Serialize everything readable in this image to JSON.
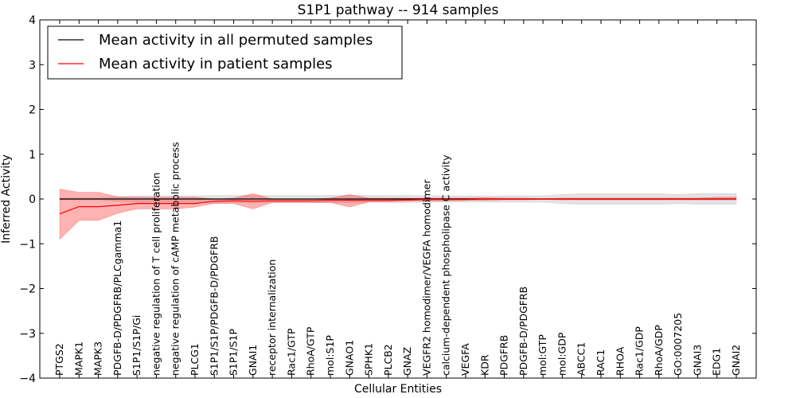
{
  "chart_data": {
    "type": "line",
    "title": "S1P1 pathway -- 914 samples",
    "xlabel": "Cellular Entities",
    "ylabel": "Inferred Activity",
    "ylim": [
      -4,
      4
    ],
    "yticks": [
      -4,
      -3,
      -2,
      -1,
      0,
      1,
      2,
      3,
      4
    ],
    "ytick_labels": [
      "−4",
      "−3",
      "−2",
      "−1",
      "0",
      "1",
      "2",
      "3",
      "4"
    ],
    "grid": false,
    "legend_position": "top-left",
    "categories": [
      "PTGS2",
      "MAPK1",
      "MAPK3",
      "PDGFB-D/PDGFRB/PLCgamma1",
      "S1P1/S1P/Gi",
      "negative regulation of T cell proliferation",
      "negative regulation of cAMP metabolic process",
      "PLCG1",
      "S1P1/S1P/PDGFB-D/PDGFRB",
      "S1P1/S1P",
      "GNAI1",
      "receptor internalization",
      "Rac1/GTP",
      "RhoA/GTP",
      "mol:S1P",
      "GNAO1",
      "SPHK1",
      "PLCB2",
      "GNAZ",
      "VEGFR2 homodimer/VEGFA homodimer",
      "calcium-dependent phospholipase C activity",
      "VEGFA",
      "KDR",
      "PDGFRB",
      "PDGFB-D/PDGFRB",
      "mol:GTP",
      "mol:GDP",
      "ABCC1",
      "RAC1",
      "RHOA",
      "Rac1/GDP",
      "RhoA/GDP",
      "GO:0007205",
      "GNAI3",
      "EDG1",
      "GNAI2"
    ],
    "series": [
      {
        "name": "Mean activity in all permuted samples",
        "color": "#000000",
        "values": [
          0,
          0,
          0,
          0,
          0,
          0,
          0,
          0,
          0,
          0,
          0,
          0,
          0,
          0,
          0,
          0,
          0,
          0,
          0,
          0,
          0,
          0,
          0,
          0,
          0,
          0,
          0,
          0,
          0,
          0,
          0,
          0,
          0,
          0,
          0,
          0
        ],
        "lower": [
          -0.02,
          -0.02,
          -0.02,
          -0.05,
          -0.07,
          -0.07,
          -0.07,
          -0.07,
          -0.08,
          -0.08,
          -0.08,
          -0.08,
          -0.08,
          -0.08,
          -0.08,
          -0.08,
          -0.08,
          -0.08,
          -0.08,
          -0.07,
          -0.07,
          -0.07,
          -0.07,
          -0.07,
          -0.07,
          -0.07,
          -0.1,
          -0.12,
          -0.12,
          -0.12,
          -0.12,
          -0.12,
          -0.1,
          -0.12,
          -0.12,
          -0.12
        ],
        "upper": [
          0.02,
          0.02,
          0.02,
          0.05,
          0.07,
          0.07,
          0.07,
          0.07,
          0.08,
          0.08,
          0.08,
          0.08,
          0.08,
          0.08,
          0.08,
          0.08,
          0.08,
          0.08,
          0.08,
          0.07,
          0.07,
          0.07,
          0.07,
          0.07,
          0.07,
          0.07,
          0.1,
          0.12,
          0.12,
          0.12,
          0.12,
          0.12,
          0.1,
          0.12,
          0.12,
          0.12
        ]
      },
      {
        "name": "Mean activity in patient samples",
        "color": "#ff0000",
        "values": [
          -0.33,
          -0.17,
          -0.17,
          -0.14,
          -0.1,
          -0.1,
          -0.1,
          -0.1,
          -0.05,
          -0.04,
          -0.05,
          -0.04,
          -0.04,
          -0.04,
          -0.03,
          -0.03,
          -0.03,
          -0.03,
          -0.02,
          -0.01,
          -0.01,
          -0.01,
          0,
          0,
          0,
          0,
          0,
          0,
          0,
          0,
          0,
          0,
          0,
          0,
          0,
          0
        ],
        "lower": [
          -0.9,
          -0.48,
          -0.48,
          -0.32,
          -0.22,
          -0.22,
          -0.22,
          -0.18,
          -0.1,
          -0.1,
          -0.22,
          -0.08,
          -0.08,
          -0.08,
          -0.08,
          -0.18,
          -0.06,
          -0.06,
          -0.05,
          -0.04,
          -0.04,
          -0.03,
          -0.03,
          -0.02,
          -0.02,
          -0.01,
          -0.02,
          -0.02,
          -0.02,
          -0.02,
          -0.02,
          -0.02,
          -0.02,
          -0.02,
          -0.02,
          -0.02
        ],
        "upper": [
          0.22,
          0.15,
          0.15,
          0.05,
          0.04,
          0.04,
          0.04,
          0.04,
          0.0,
          0.02,
          0.12,
          0.0,
          0.0,
          0.0,
          0.02,
          0.1,
          0.02,
          0.02,
          0.02,
          0.02,
          0.02,
          0.02,
          0.03,
          0.02,
          0.02,
          0.01,
          0.02,
          0.02,
          0.02,
          0.02,
          0.02,
          0.02,
          0.02,
          0.02,
          0.04,
          0.04
        ]
      }
    ],
    "legend": [
      "Mean activity in all permuted samples",
      "Mean activity in patient samples"
    ],
    "reference_line": 0
  }
}
